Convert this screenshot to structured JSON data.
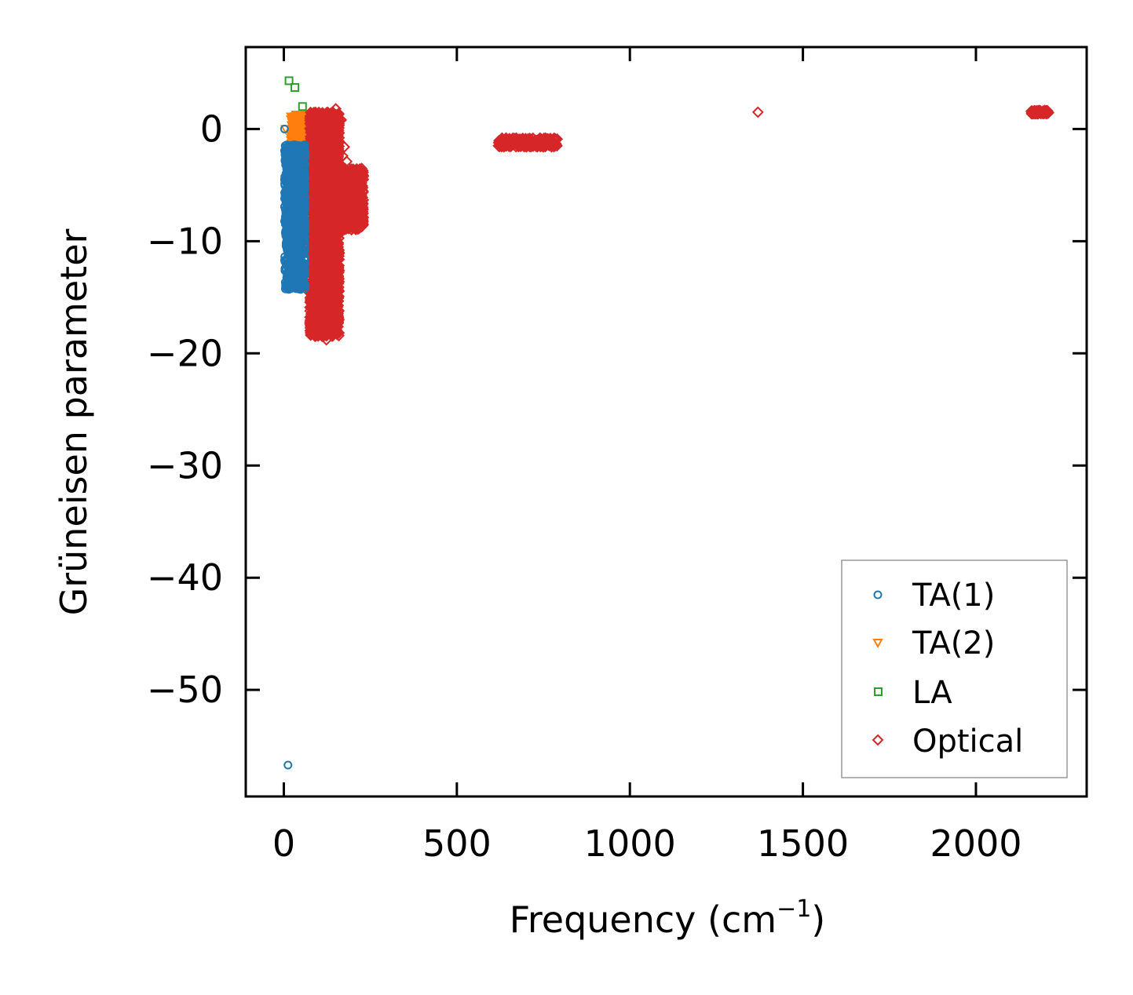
{
  "chart_data": {
    "type": "scatter",
    "xlabel": "Frequency (cm",
    "xlabel_sup": "−1",
    "xlabel_close": ")",
    "ylabel": "Grüneisen parameter",
    "xlim": [
      -110,
      2320
    ],
    "ylim": [
      -59.5,
      7.3
    ],
    "xticks": [
      {
        "value": 0,
        "label": "0"
      },
      {
        "value": 500,
        "label": "500"
      },
      {
        "value": 1000,
        "label": "1000"
      },
      {
        "value": 1500,
        "label": "1500"
      },
      {
        "value": 2000,
        "label": "2000"
      }
    ],
    "yticks": [
      {
        "value": 0,
        "label": "0"
      },
      {
        "value": -10,
        "label": "−10"
      },
      {
        "value": -20,
        "label": "−20"
      },
      {
        "value": -30,
        "label": "−30"
      },
      {
        "value": -40,
        "label": "−40"
      },
      {
        "value": -50,
        "label": "−50"
      }
    ],
    "legend_position": "lower-right",
    "series": [
      {
        "name": "TA(1)",
        "color": "#1f77b4",
        "marker": "circle",
        "points": [
          [
            2,
            0
          ],
          [
            12,
            -56.7
          ],
          [
            8,
            -2.7
          ],
          [
            10,
            -4.8
          ],
          [
            12,
            -13.2
          ],
          [
            14,
            -3.5
          ],
          [
            18,
            -12.8
          ],
          [
            20,
            -2.2
          ],
          [
            22,
            -13.5
          ],
          [
            25,
            -6.3
          ],
          [
            26,
            -3.1
          ],
          [
            28,
            -11.0
          ],
          [
            30,
            -4.3
          ],
          [
            30,
            -1.4
          ],
          [
            32,
            -12.9
          ],
          [
            33,
            -9.2
          ],
          [
            34,
            -2.7
          ],
          [
            35,
            -13.0
          ],
          [
            36,
            -5.4
          ],
          [
            37,
            -10.9
          ],
          [
            38,
            -3.3
          ],
          [
            38,
            -7.6
          ],
          [
            39,
            -13.8
          ],
          [
            40,
            -2.0
          ],
          [
            40,
            -11.5
          ],
          [
            41,
            -6.1
          ],
          [
            42,
            -4.1
          ],
          [
            42,
            -12.2
          ],
          [
            43,
            -8.4
          ],
          [
            44,
            -2.8
          ],
          [
            44,
            -14.0
          ],
          [
            45,
            -10.3
          ],
          [
            45,
            -5.2
          ],
          [
            46,
            -3.5
          ],
          [
            46,
            -12.8
          ],
          [
            47,
            -7.0
          ],
          [
            47,
            -1.7
          ],
          [
            48,
            -9.6
          ],
          [
            48,
            -14.3
          ],
          [
            49,
            -4.6
          ],
          [
            49,
            -11.7
          ],
          [
            50,
            -2.3
          ],
          [
            50,
            -6.5
          ],
          [
            51,
            -8.9
          ],
          [
            51,
            -13.1
          ],
          [
            52,
            -3.9
          ],
          [
            52,
            -10.8
          ],
          [
            53,
            -5.7
          ],
          [
            53,
            -1.9
          ],
          [
            54,
            -7.8
          ],
          [
            55,
            -3.0
          ],
          [
            55,
            -12.0
          ],
          [
            56,
            -4.9
          ],
          [
            57,
            -2.5
          ],
          [
            58,
            -6.8
          ],
          [
            58,
            -9.5
          ],
          [
            59,
            -3.4
          ],
          [
            60,
            -1.6
          ],
          [
            61,
            -4.4
          ],
          [
            62,
            -2.1
          ]
        ]
      },
      {
        "name": "TA(2)",
        "color": "#ff7f0e",
        "marker": "triangle",
        "points": [
          [
            5,
            0
          ],
          [
            20,
            -2.5
          ],
          [
            24,
            -9.2
          ],
          [
            28,
            -0.6
          ],
          [
            30,
            -3.8
          ],
          [
            32,
            0.5
          ],
          [
            34,
            -1.5
          ],
          [
            35,
            -5.6
          ],
          [
            36,
            0.9
          ],
          [
            38,
            -0.3
          ],
          [
            39,
            -2.1
          ],
          [
            40,
            0.6
          ],
          [
            41,
            -1.1
          ],
          [
            42,
            -7.4
          ],
          [
            43,
            0.2
          ],
          [
            44,
            -0.9
          ],
          [
            45,
            1.0
          ],
          [
            46,
            -2.8
          ],
          [
            47,
            0.4
          ],
          [
            48,
            -0.5
          ],
          [
            49,
            1.2
          ],
          [
            50,
            -1.6
          ],
          [
            51,
            0.7
          ],
          [
            52,
            -0.2
          ],
          [
            53,
            -4.5
          ],
          [
            54,
            0.3
          ],
          [
            55,
            -1.0
          ],
          [
            56,
            0.8
          ],
          [
            57,
            -0.4
          ],
          [
            58,
            0.1
          ],
          [
            60,
            -0.7
          ],
          [
            62,
            0.5
          ]
        ]
      },
      {
        "name": "LA",
        "color": "#2ca02c",
        "marker": "square",
        "points": [
          [
            15,
            4.3
          ],
          [
            20,
            -2.0
          ],
          [
            22,
            -1.2
          ],
          [
            26,
            -6.8
          ],
          [
            28,
            -7.3
          ],
          [
            32,
            3.7
          ],
          [
            40,
            -3.8
          ],
          [
            42,
            -1.0
          ],
          [
            44,
            -0.5
          ],
          [
            48,
            -2.4
          ],
          [
            50,
            -4.2
          ],
          [
            52,
            -1.6
          ],
          [
            54,
            2.0
          ],
          [
            55,
            -0.3
          ],
          [
            56,
            -3.0
          ],
          [
            58,
            0.8
          ],
          [
            60,
            -1.3
          ],
          [
            61,
            -5.1
          ],
          [
            62,
            0.4
          ],
          [
            63,
            -2.2
          ],
          [
            64,
            1.2
          ],
          [
            65,
            -0.8
          ],
          [
            66,
            -3.6
          ],
          [
            67,
            0.2
          ],
          [
            68,
            -1.8
          ],
          [
            68,
            1.0
          ],
          [
            70,
            -0.4
          ],
          [
            70,
            -2.8
          ],
          [
            71,
            0.6
          ],
          [
            72,
            -1.1
          ]
        ]
      },
      {
        "name": "Optical",
        "color": "#d62728",
        "marker": "diamond",
        "points": [
          [
            75,
            -3.0
          ],
          [
            78,
            -1.5
          ],
          [
            80,
            -5.2
          ],
          [
            82,
            -6.8
          ],
          [
            85,
            -2.2
          ],
          [
            88,
            -8.5
          ],
          [
            90,
            -4.0
          ],
          [
            92,
            -7.1
          ],
          [
            95,
            -1.2
          ],
          [
            98,
            -9.3
          ],
          [
            100,
            -5.6
          ],
          [
            102,
            -3.4
          ],
          [
            105,
            -7.9
          ],
          [
            108,
            -10.5
          ],
          [
            110,
            -2.1
          ],
          [
            110,
            -12.8
          ],
          [
            112,
            -6.3
          ],
          [
            115,
            -14.2
          ],
          [
            115,
            -4.5
          ],
          [
            118,
            -16.0
          ],
          [
            118,
            -8.7
          ],
          [
            120,
            -17.5
          ],
          [
            120,
            -1.0
          ],
          [
            122,
            -13.0
          ],
          [
            123,
            -18.8
          ],
          [
            125,
            -11.0
          ],
          [
            125,
            -5.0
          ],
          [
            127,
            -15.5
          ],
          [
            128,
            -3.0
          ],
          [
            128,
            -17.8
          ],
          [
            130,
            -9.0
          ],
          [
            130,
            -14.0
          ],
          [
            132,
            -6.0
          ],
          [
            132,
            -16.7
          ],
          [
            134,
            -2.0
          ],
          [
            134,
            -12.2
          ],
          [
            136,
            -0.5
          ],
          [
            136,
            -8.1
          ],
          [
            138,
            -15.0
          ],
          [
            138,
            -4.2
          ],
          [
            140,
            -10.3
          ],
          [
            140,
            0.5
          ],
          [
            142,
            -13.6
          ],
          [
            142,
            -6.9
          ],
          [
            144,
            -1.5
          ],
          [
            144,
            -11.5
          ],
          [
            146,
            -3.6
          ],
          [
            146,
            -9.7
          ],
          [
            148,
            1.2
          ],
          [
            148,
            -7.5
          ],
          [
            150,
            1.8
          ],
          [
            150,
            -5.3
          ],
          [
            152,
            -12.6
          ],
          [
            152,
            -2.7
          ],
          [
            154,
            -8.4
          ],
          [
            155,
            0.3
          ],
          [
            156,
            -10.9
          ],
          [
            158,
            -4.8
          ],
          [
            160,
            -6.6
          ],
          [
            160,
            -1.1
          ],
          [
            162,
            -9.1
          ],
          [
            164,
            -3.2
          ],
          [
            165,
            -7.8
          ],
          [
            166,
            0.8
          ],
          [
            168,
            -5.7
          ],
          [
            170,
            -2.4
          ],
          [
            170,
            -8.2
          ],
          [
            172,
            -4.3
          ],
          [
            174,
            -6.4
          ],
          [
            175,
            -1.6
          ],
          [
            176,
            -3.5
          ],
          [
            178,
            -7.3
          ],
          [
            180,
            -5.0
          ],
          [
            182,
            -2.9
          ],
          [
            184,
            -6.1
          ],
          [
            186,
            -4.4
          ],
          [
            188,
            -5.5
          ],
          [
            190,
            -3.8
          ],
          [
            192,
            -6.7
          ],
          [
            195,
            -4.9
          ],
          [
            198,
            -5.8
          ],
          [
            200,
            -4.2
          ],
          [
            205,
            -5.4
          ],
          [
            210,
            -4.6
          ],
          [
            215,
            -5.1
          ],
          [
            220,
            -4.4
          ],
          [
            225,
            -4.8
          ],
          [
            230,
            -4.5
          ],
          [
            620,
            -1.5
          ],
          [
            630,
            -1.5
          ],
          [
            640,
            -1.5
          ],
          [
            650,
            -1.45
          ],
          [
            660,
            -1.4
          ],
          [
            670,
            -1.35
          ],
          [
            680,
            -1.3
          ],
          [
            690,
            -1.25
          ],
          [
            700,
            -1.2
          ],
          [
            710,
            -1.15
          ],
          [
            720,
            -1.1
          ],
          [
            730,
            -1.1
          ],
          [
            740,
            -1.05
          ],
          [
            750,
            -1.0
          ],
          [
            760,
            -1.0
          ],
          [
            770,
            -0.95
          ],
          [
            780,
            -0.9
          ],
          [
            790,
            -0.9
          ],
          [
            1370,
            1.5
          ],
          [
            2160,
            1.6
          ],
          [
            2165,
            1.5
          ],
          [
            2170,
            1.6
          ],
          [
            2175,
            1.5
          ],
          [
            2180,
            1.55
          ],
          [
            2185,
            1.45
          ],
          [
            2190,
            1.5
          ],
          [
            2195,
            1.4
          ],
          [
            2200,
            1.5
          ],
          [
            2205,
            1.45
          ],
          [
            2210,
            1.45
          ]
        ]
      }
    ],
    "clusters": [
      {
        "series": "TA(1)",
        "x_min": 2,
        "x_max": 62,
        "y_min": -14.3,
        "y_max": -1.4,
        "count": 900
      },
      {
        "series": "TA(2)",
        "x_min": 20,
        "x_max": 62,
        "y_min": -5.0,
        "y_max": 1.3,
        "count": 500
      },
      {
        "series": "LA",
        "x_min": 30,
        "x_max": 72,
        "y_min": -6.0,
        "y_max": 1.3,
        "count": 300
      },
      {
        "series": "Optical",
        "x_min": 75,
        "x_max": 160,
        "y_min": -18.5,
        "y_max": 1.5,
        "count": 2600
      },
      {
        "series": "Optical",
        "x_min": 150,
        "x_max": 230,
        "y_min": -9.0,
        "y_max": -3.5,
        "count": 700
      },
      {
        "series": "Optical",
        "x_min": 620,
        "x_max": 790,
        "y_min": -1.6,
        "y_max": -0.8,
        "count": 250
      },
      {
        "series": "Optical",
        "x_min": 2160,
        "x_max": 2210,
        "y_min": 1.35,
        "y_max": 1.65,
        "count": 80
      }
    ]
  }
}
